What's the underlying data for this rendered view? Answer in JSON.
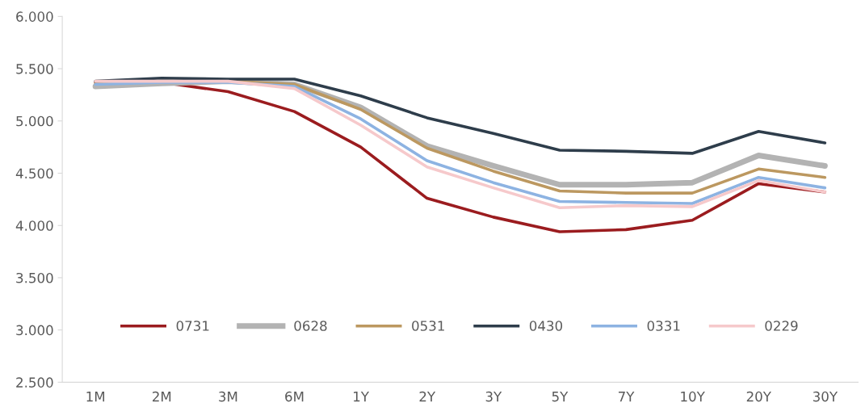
{
  "chart_data": {
    "type": "line",
    "categories": [
      "1M",
      "2M",
      "3M",
      "6M",
      "1Y",
      "2Y",
      "3Y",
      "5Y",
      "7Y",
      "10Y",
      "20Y",
      "30Y"
    ],
    "series": [
      {
        "name": "0731",
        "color": "#9b1c1f",
        "values": [
          5.37,
          5.37,
          5.28,
          5.09,
          4.75,
          4.26,
          4.08,
          3.94,
          3.96,
          4.05,
          4.4,
          4.32
        ]
      },
      {
        "name": "0628",
        "color": "#b3b3b3",
        "values": [
          5.33,
          5.36,
          5.38,
          5.35,
          5.13,
          4.76,
          4.57,
          4.39,
          4.39,
          4.41,
          4.67,
          4.57
        ]
      },
      {
        "name": "0531",
        "color": "#bc9860",
        "values": [
          5.36,
          5.38,
          5.38,
          5.35,
          5.11,
          4.74,
          4.52,
          4.33,
          4.31,
          4.31,
          4.54,
          4.46
        ]
      },
      {
        "name": "0430",
        "color": "#2e3d4b",
        "values": [
          5.38,
          5.41,
          5.4,
          5.4,
          5.24,
          5.03,
          4.88,
          4.72,
          4.71,
          4.69,
          4.9,
          4.79
        ]
      },
      {
        "name": "0331",
        "color": "#8db3e2",
        "values": [
          5.35,
          5.37,
          5.37,
          5.33,
          5.02,
          4.62,
          4.41,
          4.23,
          4.22,
          4.21,
          4.46,
          4.36
        ]
      },
      {
        "name": "0229",
        "color": "#f6c9cb",
        "values": [
          5.38,
          5.38,
          5.38,
          5.31,
          4.96,
          4.56,
          4.36,
          4.17,
          4.19,
          4.18,
          4.43,
          4.32
        ]
      }
    ],
    "ylim": [
      2.5,
      6.0
    ],
    "yticks": [
      {
        "value": 2.5,
        "label": "2.500"
      },
      {
        "value": 3.0,
        "label": "3.000"
      },
      {
        "value": 3.5,
        "label": "3.500"
      },
      {
        "value": 4.0,
        "label": "4.000"
      },
      {
        "value": 4.5,
        "label": "4.500"
      },
      {
        "value": 5.0,
        "label": "5.000"
      },
      {
        "value": 5.5,
        "label": "5.500"
      },
      {
        "value": 6.0,
        "label": "6.000"
      }
    ],
    "grid": false,
    "legend": "bottom",
    "marker": "none",
    "line_style": "solid"
  }
}
